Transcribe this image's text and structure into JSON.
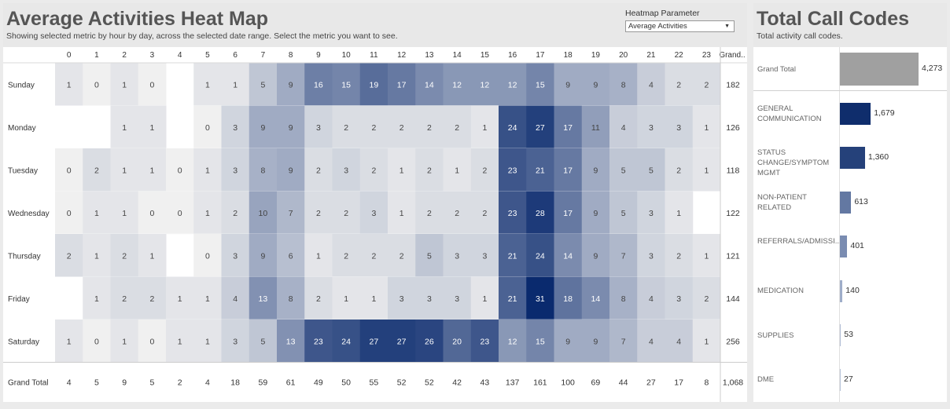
{
  "heatmap": {
    "title": "Average Activities Heat Map",
    "subtitle": "Showing selected metric by hour by day, across the selected date range. Select the metric you want to see.",
    "parameter_label": "Heatmap Parameter",
    "parameter_value": "Average Activities",
    "grand_total_col_label": "Grand..",
    "grand_total_row_label": "Grand Total"
  },
  "calls": {
    "title": "Total Call Codes",
    "subtitle": "Total activity call codes."
  },
  "chart_data": [
    {
      "type": "heatmap",
      "x": [
        "0",
        "1",
        "2",
        "3",
        "4",
        "5",
        "6",
        "7",
        "8",
        "9",
        "10",
        "11",
        "12",
        "13",
        "14",
        "15",
        "16",
        "17",
        "18",
        "19",
        "20",
        "21",
        "22",
        "23"
      ],
      "y": [
        "Sunday",
        "Monday",
        "Tuesday",
        "Wednesday",
        "Thursday",
        "Friday",
        "Saturday"
      ],
      "values": [
        [
          1,
          0,
          1,
          0,
          null,
          1,
          1,
          5,
          9,
          16,
          15,
          19,
          17,
          14,
          12,
          12,
          12,
          15,
          9,
          9,
          8,
          4,
          2,
          2
        ],
        [
          null,
          null,
          1,
          1,
          null,
          0,
          3,
          9,
          9,
          3,
          2,
          2,
          2,
          2,
          2,
          1,
          24,
          27,
          17,
          11,
          4,
          3,
          3,
          1
        ],
        [
          0,
          2,
          1,
          1,
          0,
          1,
          3,
          8,
          9,
          2,
          3,
          2,
          1,
          2,
          1,
          2,
          23,
          21,
          17,
          9,
          5,
          5,
          2,
          1
        ],
        [
          0,
          1,
          1,
          0,
          0,
          1,
          2,
          10,
          7,
          2,
          2,
          3,
          1,
          2,
          2,
          2,
          23,
          28,
          17,
          9,
          5,
          3,
          1,
          null
        ],
        [
          2,
          1,
          2,
          1,
          null,
          0,
          3,
          9,
          6,
          1,
          2,
          2,
          2,
          5,
          3,
          3,
          21,
          24,
          14,
          9,
          7,
          3,
          2,
          1
        ],
        [
          null,
          1,
          2,
          2,
          1,
          1,
          4,
          13,
          8,
          2,
          1,
          1,
          3,
          3,
          3,
          1,
          21,
          31,
          18,
          14,
          8,
          4,
          3,
          2
        ],
        [
          1,
          0,
          1,
          0,
          1,
          1,
          3,
          5,
          13,
          23,
          24,
          27,
          27,
          26,
          20,
          23,
          12,
          15,
          9,
          9,
          7,
          4,
          4,
          1
        ]
      ],
      "row_totals": [
        "182",
        "126",
        "118",
        "122",
        "121",
        "144",
        "256"
      ],
      "col_totals": [
        "4",
        "5",
        "9",
        "5",
        "2",
        "4",
        "18",
        "59",
        "61",
        "49",
        "50",
        "55",
        "52",
        "52",
        "42",
        "43",
        "137",
        "161",
        "100",
        "69",
        "44",
        "27",
        "17",
        "8"
      ],
      "grand_total": "1,068",
      "color_min": "#f0f0f0",
      "color_max": "#0a2a6e"
    },
    {
      "type": "bar",
      "categories": [
        "Grand Total",
        "GENERAL COMMUNICATION",
        "STATUS CHANGE/SYMPTOM MGMT",
        "NON-PATIENT RELATED",
        "REFERRALS/ADMISSI...",
        "MEDICATION",
        "SUPPLIES",
        "DME"
      ],
      "values": [
        4273,
        1679,
        1360,
        613,
        401,
        140,
        53,
        27
      ],
      "value_labels": [
        "4,273",
        "1,679",
        "1,360",
        "613",
        "401",
        "140",
        "53",
        "27"
      ],
      "grand_total_color": "#a0a0a0",
      "color_min": "#c8d2e4",
      "color_max": "#0f2d6c"
    }
  ]
}
